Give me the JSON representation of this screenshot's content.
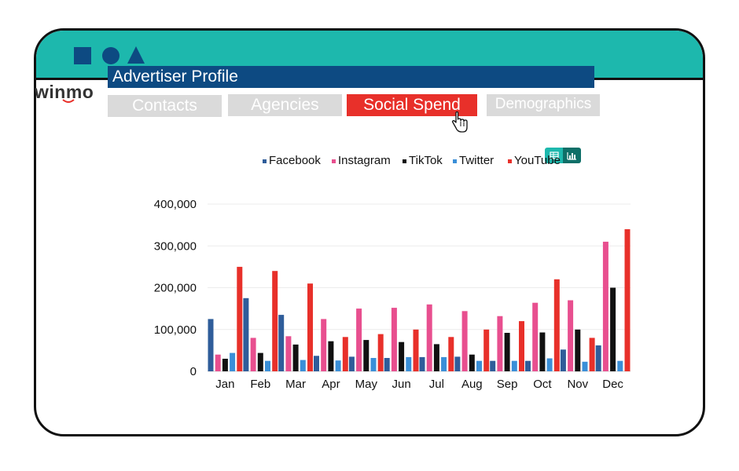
{
  "window": {
    "accent_color": "#1db8ad",
    "shapes": [
      "square-icon",
      "circle-icon",
      "triangle-icon"
    ]
  },
  "app": {
    "logo_text": "winmo"
  },
  "profile": {
    "title": "Advertiser Profile"
  },
  "tabs": [
    {
      "label": "Contacts",
      "active": false
    },
    {
      "label": "Agencies",
      "active": false
    },
    {
      "label": "Social Spend",
      "active": true
    },
    {
      "label": "Demographics",
      "active": false
    }
  ],
  "view_toggle": {
    "table_icon": "table-icon",
    "chart_icon": "bar-chart-icon",
    "selected": "chart"
  },
  "chart_data": {
    "type": "bar",
    "categories": [
      "Jan",
      "Feb",
      "Mar",
      "Apr",
      "May",
      "Jun",
      "Jul",
      "Aug",
      "Sep",
      "Oct",
      "Nov",
      "Dec"
    ],
    "series": [
      {
        "name": "Facebook",
        "color": "#2f5d9a",
        "values": [
          125000,
          175000,
          135000,
          37000,
          35000,
          32000,
          34000,
          35000,
          25000,
          25000,
          52000,
          62000
        ]
      },
      {
        "name": "Instagram",
        "color": "#e84f8f",
        "values": [
          40000,
          80000,
          84000,
          125000,
          150000,
          152000,
          160000,
          144000,
          132000,
          164000,
          170000,
          310000
        ]
      },
      {
        "name": "TikTok",
        "color": "#111111",
        "values": [
          30000,
          44000,
          64000,
          72000,
          75000,
          70000,
          65000,
          40000,
          92000,
          93000,
          100000,
          200000
        ]
      },
      {
        "name": "Twitter",
        "color": "#3a8fd8",
        "values": [
          44000,
          25000,
          27000,
          26000,
          32000,
          34000,
          34000,
          25000,
          25000,
          31000,
          23000,
          25000
        ]
      },
      {
        "name": "YouTube",
        "color": "#e8302a",
        "values": [
          250000,
          240000,
          210000,
          82000,
          89000,
          100000,
          82000,
          100000,
          120000,
          220000,
          80000,
          340000
        ]
      }
    ],
    "yticks": [
      "0",
      "100,000",
      "200,000",
      "300,000",
      "400,000"
    ],
    "ylim": [
      0,
      400000
    ],
    "grid": true,
    "legend_position": "top"
  }
}
